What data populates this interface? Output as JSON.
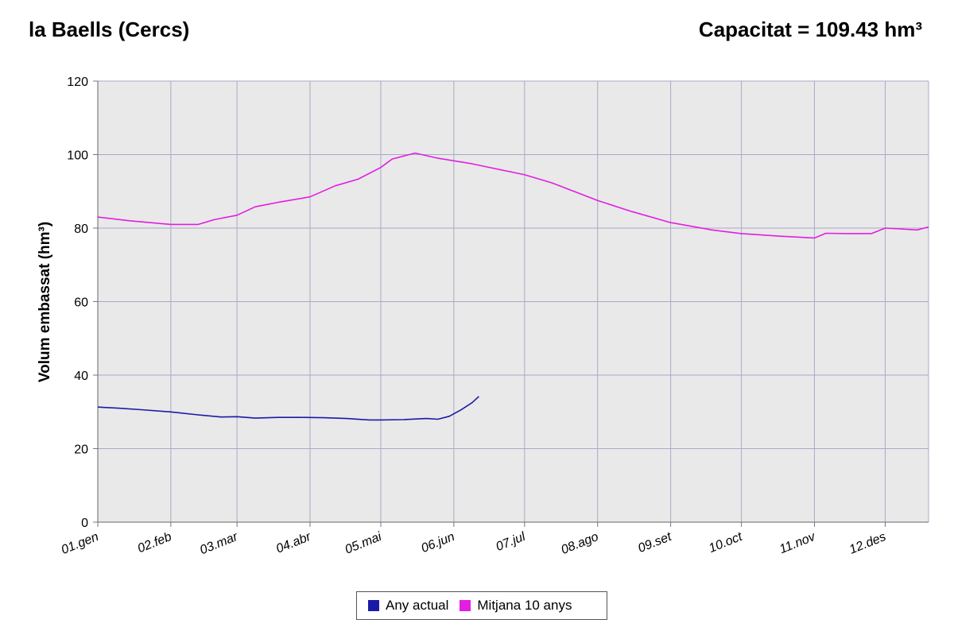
{
  "header": {
    "title": "la Baells (Cercs)",
    "capacity": "Capacitat = 109.43 hm³"
  },
  "chart_data": {
    "type": "line",
    "title": "la Baells (Cercs)",
    "ylabel": "Volum embassat (hm³)",
    "xlabel": "",
    "ylim": [
      0,
      120
    ],
    "yticks": [
      0,
      20,
      40,
      60,
      80,
      100,
      120
    ],
    "xlim": [
      1,
      365
    ],
    "xticks": [
      {
        "label": "01.gen",
        "day": 1
      },
      {
        "label": "02.feb",
        "day": 33
      },
      {
        "label": "03.mar",
        "day": 62
      },
      {
        "label": "04.abr",
        "day": 94
      },
      {
        "label": "05.mai",
        "day": 125
      },
      {
        "label": "06.jun",
        "day": 157
      },
      {
        "label": "07.jul",
        "day": 188
      },
      {
        "label": "08.ago",
        "day": 220
      },
      {
        "label": "09.set",
        "day": 252
      },
      {
        "label": "10.oct",
        "day": 283
      },
      {
        "label": "11.nov",
        "day": 315
      },
      {
        "label": "12.des",
        "day": 346
      }
    ],
    "grid": true,
    "legend_position": "bottom-center",
    "series": [
      {
        "name": "Any actual",
        "color": "#1a1aa8",
        "x": [
          1,
          10,
          20,
          33,
          45,
          55,
          62,
          70,
          80,
          90,
          100,
          110,
          120,
          125,
          135,
          145,
          150,
          155,
          160,
          165,
          168
        ],
        "y": [
          31.3,
          31.0,
          30.6,
          30.0,
          29.2,
          28.6,
          28.7,
          28.3,
          28.5,
          28.5,
          28.4,
          28.2,
          27.8,
          27.8,
          27.9,
          28.2,
          28.0,
          28.8,
          30.5,
          32.5,
          34.2
        ]
      },
      {
        "name": "Mitjana 10 anys",
        "color": "#e21ee2",
        "x": [
          1,
          15,
          33,
          45,
          52,
          62,
          70,
          80,
          94,
          105,
          115,
          125,
          130,
          140,
          150,
          165,
          188,
          200,
          220,
          235,
          252,
          270,
          283,
          300,
          315,
          320,
          330,
          340,
          346,
          360,
          365
        ],
        "y": [
          83.0,
          82.0,
          81.0,
          81.0,
          82.3,
          83.5,
          85.8,
          87.0,
          88.5,
          91.5,
          93.3,
          96.5,
          98.8,
          100.4,
          99.0,
          97.5,
          94.5,
          92.3,
          87.5,
          84.5,
          81.5,
          79.5,
          78.5,
          77.8,
          77.3,
          78.6,
          78.5,
          78.5,
          80.0,
          79.5,
          80.3
        ]
      }
    ]
  }
}
